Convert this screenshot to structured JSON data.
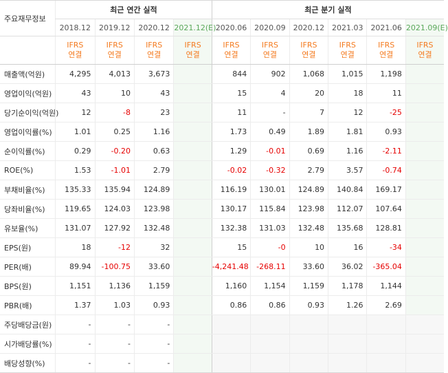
{
  "header": {
    "row_label": "주요재무정보",
    "annual_group": "최근 연간 실적",
    "quarter_group": "최근 분기 실적",
    "annual_periods": [
      "2018.12",
      "2019.12",
      "2020.12",
      "2021.12(E)"
    ],
    "quarter_periods": [
      "2020.06",
      "2020.09",
      "2020.12",
      "2021.03",
      "2021.06",
      "2021.09(E)"
    ],
    "ifrs_line1": "IFRS",
    "ifrs_line2": "연결"
  },
  "rows": [
    {
      "label": "매출액(억원)",
      "annual": [
        "4,295",
        "4,013",
        "3,673",
        ""
      ],
      "quarter": [
        "844",
        "902",
        "1,068",
        "1,015",
        "1,198",
        ""
      ]
    },
    {
      "label": "영업이익(억원)",
      "annual": [
        "43",
        "10",
        "43",
        ""
      ],
      "quarter": [
        "15",
        "4",
        "20",
        "18",
        "11",
        ""
      ]
    },
    {
      "label": "당기순이익(억원)",
      "annual": [
        "12",
        "-8",
        "23",
        ""
      ],
      "quarter": [
        "11",
        "-",
        "7",
        "12",
        "-25",
        ""
      ]
    },
    {
      "label": "영업이익률(%)",
      "annual": [
        "1.01",
        "0.25",
        "1.16",
        ""
      ],
      "quarter": [
        "1.73",
        "0.49",
        "1.89",
        "1.81",
        "0.93",
        ""
      ]
    },
    {
      "label": "순이익률(%)",
      "annual": [
        "0.29",
        "-0.20",
        "0.63",
        ""
      ],
      "quarter": [
        "1.29",
        "-0.01",
        "0.69",
        "1.16",
        "-2.11",
        ""
      ]
    },
    {
      "label": "ROE(%)",
      "annual": [
        "1.53",
        "-1.01",
        "2.79",
        ""
      ],
      "quarter": [
        "-0.02",
        "-0.32",
        "2.79",
        "3.57",
        "-0.74",
        ""
      ]
    },
    {
      "label": "부채비율(%)",
      "annual": [
        "135.33",
        "135.94",
        "124.89",
        ""
      ],
      "quarter": [
        "116.19",
        "130.01",
        "124.89",
        "140.84",
        "169.17",
        ""
      ]
    },
    {
      "label": "당좌비율(%)",
      "annual": [
        "119.65",
        "124.03",
        "123.98",
        ""
      ],
      "quarter": [
        "130.17",
        "115.84",
        "123.98",
        "112.07",
        "107.64",
        ""
      ]
    },
    {
      "label": "유보율(%)",
      "annual": [
        "131.07",
        "127.92",
        "132.48",
        ""
      ],
      "quarter": [
        "132.38",
        "131.03",
        "132.48",
        "135.68",
        "128.81",
        ""
      ]
    },
    {
      "label": "EPS(원)",
      "annual": [
        "18",
        "-12",
        "32",
        ""
      ],
      "quarter": [
        "15",
        "-0",
        "10",
        "16",
        "-34",
        ""
      ]
    },
    {
      "label": "PER(배)",
      "annual": [
        "89.94",
        "-100.75",
        "33.60",
        ""
      ],
      "quarter": [
        "-4,241.48",
        "-268.11",
        "33.60",
        "36.02",
        "-365.04",
        ""
      ]
    },
    {
      "label": "BPS(원)",
      "annual": [
        "1,151",
        "1,136",
        "1,159",
        ""
      ],
      "quarter": [
        "1,160",
        "1,154",
        "1,159",
        "1,178",
        "1,144",
        ""
      ]
    },
    {
      "label": "PBR(배)",
      "annual": [
        "1.37",
        "1.03",
        "0.93",
        ""
      ],
      "quarter": [
        "0.86",
        "0.86",
        "0.93",
        "1.26",
        "2.69",
        ""
      ]
    },
    {
      "label": "주당배당금(원)",
      "annual": [
        "-",
        "-",
        "-",
        ""
      ],
      "quarter": [
        "",
        "",
        "",
        "",
        "",
        ""
      ],
      "quarter_blank": true
    },
    {
      "label": "시가배당률(%)",
      "annual": [
        "-",
        "-",
        "-",
        ""
      ],
      "quarter": [
        "",
        "",
        "",
        "",
        "",
        ""
      ],
      "quarter_blank": true
    },
    {
      "label": "배당성향(%)",
      "annual": [
        "-",
        "-",
        "-",
        ""
      ],
      "quarter": [
        "",
        "",
        "",
        "",
        "",
        ""
      ],
      "quarter_blank": true
    }
  ],
  "section_starts": [
    3,
    6,
    9,
    13
  ],
  "colors": {
    "negative": "#e60000",
    "ifrs": "#f47b20",
    "estimate_bg": "#f3f9f3",
    "estimate_text": "#5aa85a"
  }
}
